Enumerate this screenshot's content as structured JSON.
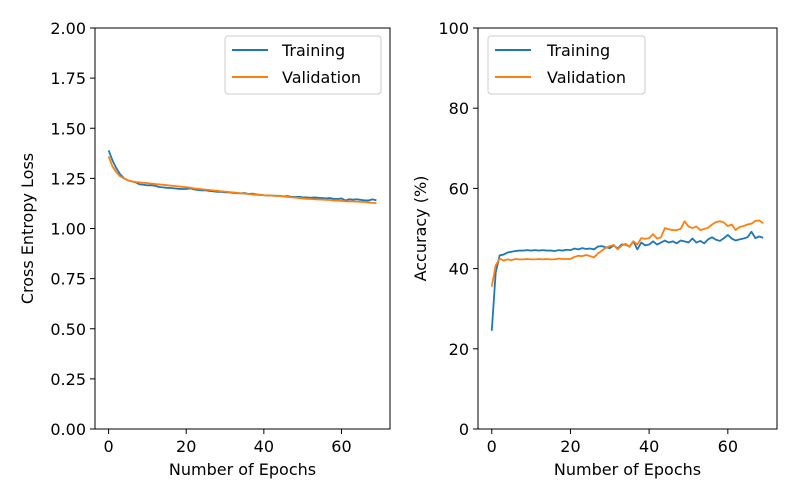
{
  "colors": {
    "training": "#1f77b4",
    "validation": "#ff7f0e",
    "legend_border": "#cccccc"
  },
  "chart_data": [
    {
      "type": "line",
      "xlabel": "Number of Epochs",
      "ylabel": "Cross Entropy Loss",
      "xlim": [
        -3.5,
        72.5
      ],
      "ylim": [
        0.0,
        2.0
      ],
      "xticks": [
        0,
        20,
        40,
        60
      ],
      "xtick_labels": [
        "0",
        "20",
        "40",
        "60"
      ],
      "yticks": [
        0.0,
        0.25,
        0.5,
        0.75,
        1.0,
        1.25,
        1.5,
        1.75,
        2.0
      ],
      "ytick_labels": [
        "0.00",
        "0.25",
        "0.50",
        "0.75",
        "1.00",
        "1.25",
        "1.50",
        "1.75",
        "2.00"
      ],
      "grid": false,
      "legend_position": "top-right",
      "x": [
        0,
        1,
        2,
        3,
        4,
        5,
        6,
        7,
        8,
        9,
        10,
        11,
        12,
        13,
        14,
        15,
        16,
        17,
        18,
        19,
        20,
        21,
        22,
        23,
        24,
        25,
        26,
        27,
        28,
        29,
        30,
        31,
        32,
        33,
        34,
        35,
        36,
        37,
        38,
        39,
        40,
        41,
        42,
        43,
        44,
        45,
        46,
        47,
        48,
        49,
        50,
        51,
        52,
        53,
        54,
        55,
        56,
        57,
        58,
        59,
        60,
        61,
        62,
        63,
        64,
        65,
        66,
        67,
        68,
        69
      ],
      "series": [
        {
          "name": "Training",
          "color_key": "training",
          "values": [
            1.39,
            1.34,
            1.3,
            1.27,
            1.25,
            1.24,
            1.235,
            1.23,
            1.22,
            1.218,
            1.215,
            1.215,
            1.213,
            1.207,
            1.205,
            1.203,
            1.202,
            1.2,
            1.198,
            1.197,
            1.197,
            1.2,
            1.195,
            1.192,
            1.19,
            1.19,
            1.187,
            1.185,
            1.183,
            1.183,
            1.18,
            1.18,
            1.178,
            1.176,
            1.175,
            1.177,
            1.172,
            1.174,
            1.17,
            1.168,
            1.166,
            1.165,
            1.164,
            1.163,
            1.163,
            1.16,
            1.162,
            1.158,
            1.157,
            1.158,
            1.156,
            1.155,
            1.153,
            1.155,
            1.153,
            1.152,
            1.15,
            1.152,
            1.148,
            1.147,
            1.15,
            1.14,
            1.146,
            1.144,
            1.146,
            1.143,
            1.14,
            1.14,
            1.145,
            1.14
          ]
        },
        {
          "name": "Validation",
          "color_key": "validation",
          "values": [
            1.36,
            1.31,
            1.28,
            1.26,
            1.25,
            1.24,
            1.235,
            1.232,
            1.23,
            1.228,
            1.226,
            1.224,
            1.222,
            1.22,
            1.218,
            1.216,
            1.214,
            1.212,
            1.21,
            1.208,
            1.206,
            1.204,
            1.2,
            1.198,
            1.196,
            1.194,
            1.192,
            1.19,
            1.188,
            1.186,
            1.184,
            1.182,
            1.18,
            1.178,
            1.176,
            1.174,
            1.172,
            1.17,
            1.168,
            1.167,
            1.166,
            1.165,
            1.164,
            1.163,
            1.162,
            1.16,
            1.158,
            1.156,
            1.154,
            1.152,
            1.15,
            1.148,
            1.147,
            1.146,
            1.145,
            1.144,
            1.143,
            1.142,
            1.14,
            1.139,
            1.138,
            1.136,
            1.135,
            1.135,
            1.134,
            1.133,
            1.132,
            1.13,
            1.128,
            1.127
          ]
        }
      ]
    },
    {
      "type": "line",
      "xlabel": "Number of Epochs",
      "ylabel": "Accuracy (%)",
      "xlim": [
        -3.5,
        72.5
      ],
      "ylim": [
        0,
        100
      ],
      "xticks": [
        0,
        20,
        40,
        60
      ],
      "xtick_labels": [
        "0",
        "20",
        "40",
        "60"
      ],
      "yticks": [
        0,
        20,
        40,
        60,
        80,
        100
      ],
      "ytick_labels": [
        "0",
        "20",
        "40",
        "60",
        "80",
        "100"
      ],
      "grid": false,
      "legend_position": "top-left",
      "x": [
        0,
        1,
        2,
        3,
        4,
        5,
        6,
        7,
        8,
        9,
        10,
        11,
        12,
        13,
        14,
        15,
        16,
        17,
        18,
        19,
        20,
        21,
        22,
        23,
        24,
        25,
        26,
        27,
        28,
        29,
        30,
        31,
        32,
        33,
        34,
        35,
        36,
        37,
        38,
        39,
        40,
        41,
        42,
        43,
        44,
        45,
        46,
        47,
        48,
        49,
        50,
        51,
        52,
        53,
        54,
        55,
        56,
        57,
        58,
        59,
        60,
        61,
        62,
        63,
        64,
        65,
        66,
        67,
        68,
        69
      ],
      "series": [
        {
          "name": "Training",
          "color_key": "training",
          "values": [
            24.5,
            39.0,
            43.3,
            43.5,
            44.0,
            44.2,
            44.4,
            44.5,
            44.5,
            44.6,
            44.5,
            44.6,
            44.5,
            44.6,
            44.5,
            44.5,
            44.4,
            44.6,
            44.5,
            44.7,
            44.6,
            45.0,
            44.8,
            45.1,
            44.9,
            45.0,
            44.8,
            45.5,
            45.6,
            45.3,
            45.1,
            45.8,
            45.0,
            46.0,
            46.0,
            45.5,
            46.8,
            44.8,
            46.5,
            45.8,
            46.0,
            46.8,
            46.0,
            46.5,
            47.0,
            46.5,
            46.8,
            46.3,
            47.0,
            46.8,
            46.5,
            47.5,
            46.5,
            46.9,
            46.3,
            47.3,
            47.8,
            47.2,
            46.9,
            47.6,
            48.4,
            47.5,
            47.0,
            47.3,
            47.5,
            47.8,
            49.2,
            47.6,
            48.0,
            47.7
          ]
        },
        {
          "name": "Validation",
          "color_key": "validation",
          "values": [
            35.5,
            40.8,
            42.5,
            42.0,
            42.3,
            42.1,
            42.4,
            42.3,
            42.3,
            42.4,
            42.3,
            42.3,
            42.4,
            42.3,
            42.4,
            42.3,
            42.3,
            42.5,
            42.4,
            42.4,
            42.4,
            42.9,
            43.2,
            43.1,
            43.4,
            43.1,
            42.8,
            43.8,
            44.5,
            45.2,
            45.6,
            45.9,
            44.8,
            45.7,
            46.2,
            45.4,
            46.8,
            46.0,
            47.6,
            47.4,
            47.6,
            48.6,
            47.5,
            47.8,
            50.1,
            49.8,
            49.6,
            49.6,
            49.9,
            51.8,
            50.5,
            50.1,
            50.5,
            49.6,
            49.9,
            50.2,
            51.0,
            51.6,
            51.8,
            51.5,
            50.6,
            51.0,
            49.6,
            50.4,
            50.6,
            51.0,
            51.2,
            51.9,
            52.0,
            51.3
          ]
        }
      ]
    }
  ]
}
